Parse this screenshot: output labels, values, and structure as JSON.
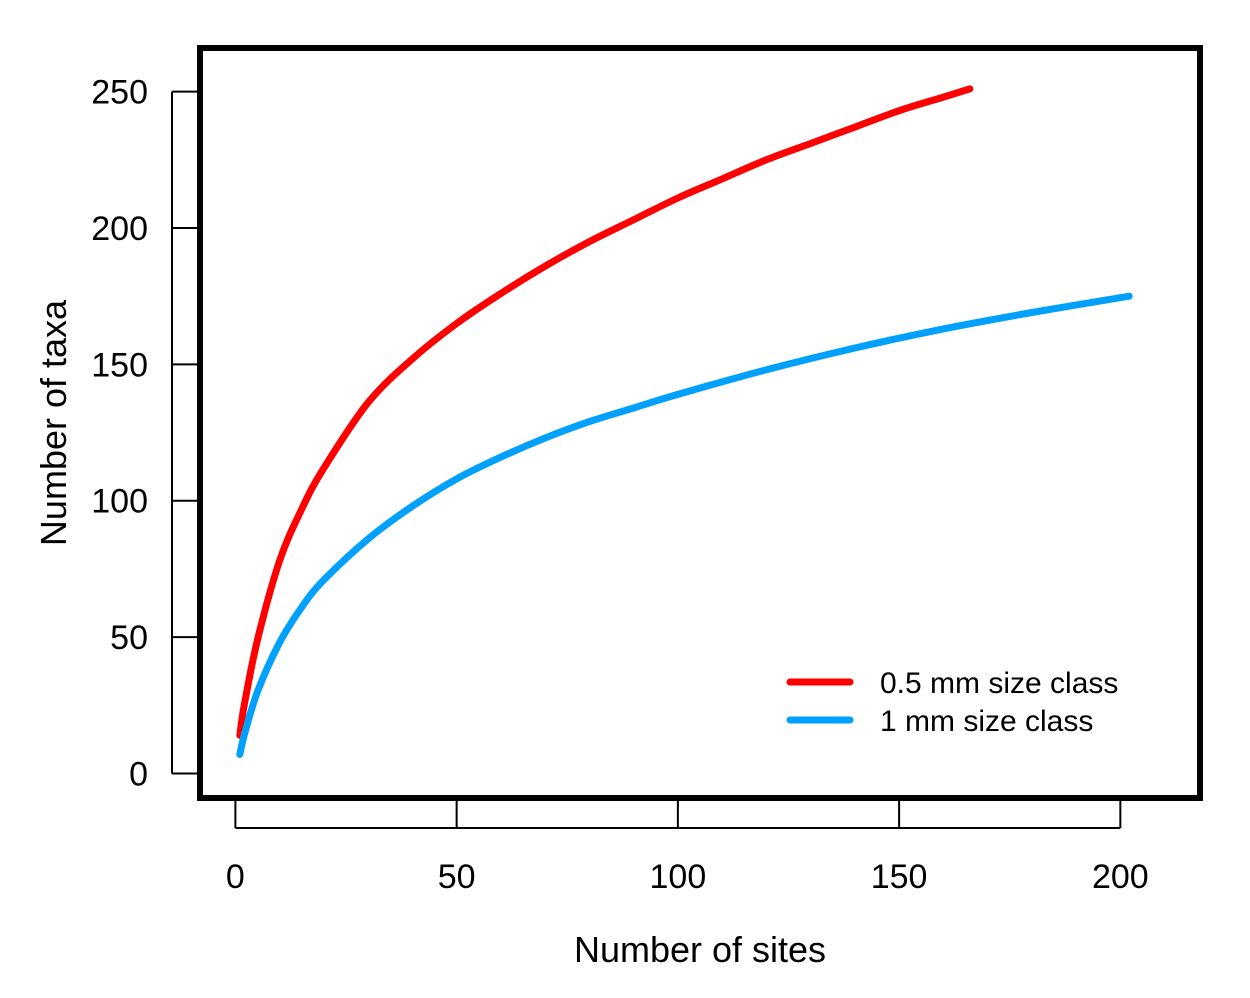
{
  "chart_data": {
    "type": "line",
    "title": "",
    "xlabel": "Number of sites",
    "ylabel": "Number of taxa",
    "xlim": [
      -8,
      218
    ],
    "ylim": [
      -9,
      266
    ],
    "xticks": [
      0,
      50,
      100,
      150,
      200
    ],
    "yticks": [
      0,
      50,
      100,
      150,
      200,
      250
    ],
    "grid": false,
    "legend": {
      "position": "bottom-right"
    },
    "series": [
      {
        "name": "0.5 mm size class",
        "color": "#ff0000",
        "x": [
          1,
          2,
          5,
          10,
          15,
          20,
          30,
          40,
          50,
          60,
          70,
          80,
          90,
          100,
          110,
          120,
          130,
          140,
          150,
          160,
          166
        ],
        "y": [
          14,
          25,
          49,
          78,
          97,
          112,
          136,
          152,
          165,
          176,
          186,
          195,
          203,
          211,
          218,
          225,
          231,
          237,
          243,
          248,
          251
        ]
      },
      {
        "name": "1 mm size class",
        "color": "#00a0ff",
        "x": [
          1,
          2,
          5,
          10,
          15,
          20,
          30,
          40,
          50,
          60,
          70,
          80,
          90,
          100,
          120,
          140,
          160,
          180,
          202
        ],
        "y": [
          7,
          14,
          30,
          48,
          61,
          71,
          86,
          98,
          108,
          116,
          123,
          129,
          134,
          139,
          148,
          156,
          163,
          169,
          175
        ]
      }
    ]
  }
}
